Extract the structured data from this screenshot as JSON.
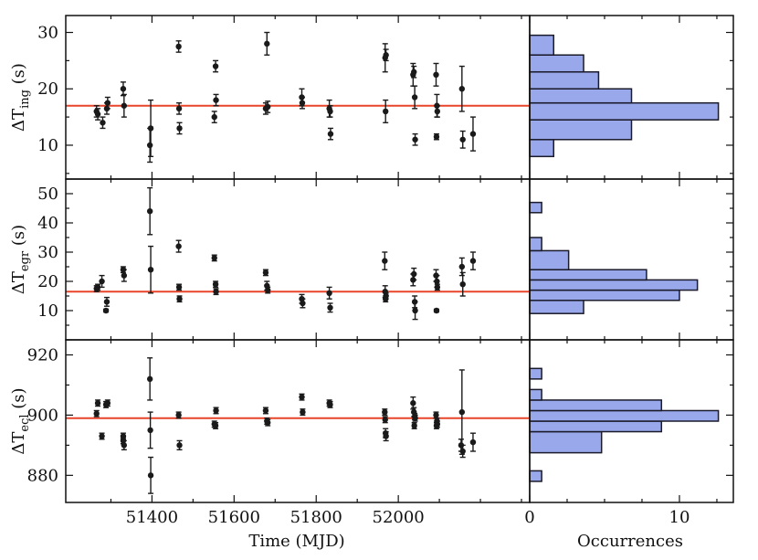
{
  "chart_data": [
    {
      "type": "scatter",
      "panel": "ingress",
      "ylabel": "ΔT",
      "ylabel_sub": "ing",
      "ylabel_unit": "(s)",
      "xlabel": "Time (MJD)",
      "xlim": [
        51190,
        52320
      ],
      "ylim": [
        4,
        33
      ],
      "yticks": [
        10,
        20,
        30
      ],
      "reference_line": 17,
      "points": [
        {
          "x": 51265,
          "y": 16,
          "err": 1
        },
        {
          "x": 51268,
          "y": 15.5,
          "err": 1
        },
        {
          "x": 51280,
          "y": 14,
          "err": 1
        },
        {
          "x": 51290,
          "y": 16.5,
          "err": 1
        },
        {
          "x": 51292,
          "y": 17.5,
          "err": 1
        },
        {
          "x": 51330,
          "y": 20,
          "err": 1.2
        },
        {
          "x": 51332,
          "y": 17,
          "err": 2
        },
        {
          "x": 51395,
          "y": 10,
          "err": 3
        },
        {
          "x": 51397,
          "y": 13,
          "err": 5
        },
        {
          "x": 51465,
          "y": 27.5,
          "err": 1
        },
        {
          "x": 51466,
          "y": 16.5,
          "err": 1
        },
        {
          "x": 51467,
          "y": 13,
          "err": 1
        },
        {
          "x": 51555,
          "y": 24,
          "err": 1
        },
        {
          "x": 51556,
          "y": 18,
          "err": 1
        },
        {
          "x": 51552,
          "y": 15,
          "err": 1
        },
        {
          "x": 51680,
          "y": 28,
          "err": 2
        },
        {
          "x": 51677,
          "y": 16.5,
          "err": 1
        },
        {
          "x": 51682,
          "y": 16.8,
          "err": 1
        },
        {
          "x": 51765,
          "y": 18.5,
          "err": 1.5
        },
        {
          "x": 51766,
          "y": 17.5,
          "err": 1
        },
        {
          "x": 51832,
          "y": 16.5,
          "err": 1.5
        },
        {
          "x": 51834,
          "y": 16,
          "err": 1
        },
        {
          "x": 51835,
          "y": 12,
          "err": 1
        },
        {
          "x": 51968,
          "y": 25.5,
          "err": 2.5
        },
        {
          "x": 51970,
          "y": 26,
          "err": 1
        },
        {
          "x": 51969,
          "y": 16,
          "err": 2
        },
        {
          "x": 52036,
          "y": 22.5,
          "err": 2
        },
        {
          "x": 52038,
          "y": 23,
          "err": 1
        },
        {
          "x": 52040,
          "y": 18.5,
          "err": 2
        },
        {
          "x": 52041,
          "y": 11,
          "err": 1
        },
        {
          "x": 52092,
          "y": 22.5,
          "err": 2
        },
        {
          "x": 52094,
          "y": 17,
          "err": 2
        },
        {
          "x": 52095,
          "y": 16,
          "err": 1
        },
        {
          "x": 52093,
          "y": 11.5,
          "err": 0.5
        },
        {
          "x": 52155,
          "y": 20,
          "err": 4
        },
        {
          "x": 52157,
          "y": 11,
          "err": 1.5
        },
        {
          "x": 52182,
          "y": 12,
          "err": 3
        }
      ],
      "histogram": [
        {
          "y0": 8,
          "y1": 11,
          "count": 1.6
        },
        {
          "y0": 11,
          "y1": 14.5,
          "count": 6.8
        },
        {
          "y0": 14.5,
          "y1": 17.5,
          "count": 12.6
        },
        {
          "y0": 17.5,
          "y1": 20,
          "count": 6.8
        },
        {
          "y0": 20,
          "y1": 23,
          "count": 4.6
        },
        {
          "y0": 23,
          "y1": 26,
          "count": 3.6
        },
        {
          "y0": 26,
          "y1": 29.5,
          "count": 1.6
        }
      ]
    },
    {
      "type": "scatter",
      "panel": "egress",
      "ylabel": "ΔT",
      "ylabel_sub": "egr",
      "ylabel_unit": "(s)",
      "xlim": [
        51190,
        52320
      ],
      "ylim": [
        0,
        55
      ],
      "yticks": [
        10,
        20,
        30,
        40,
        50
      ],
      "reference_line": 16.5,
      "points": [
        {
          "x": 51265,
          "y": 17.5,
          "err": 1
        },
        {
          "x": 51268,
          "y": 18,
          "err": 1
        },
        {
          "x": 51278,
          "y": 20,
          "err": 2
        },
        {
          "x": 51290,
          "y": 13,
          "err": 1.5
        },
        {
          "x": 51288,
          "y": 10,
          "err": 0.5
        },
        {
          "x": 51330,
          "y": 24,
          "err": 1
        },
        {
          "x": 51332,
          "y": 22,
          "err": 2
        },
        {
          "x": 51395,
          "y": 44,
          "err": 8
        },
        {
          "x": 51397,
          "y": 24,
          "err": 8
        },
        {
          "x": 51465,
          "y": 32,
          "err": 2
        },
        {
          "x": 51466,
          "y": 18,
          "err": 1
        },
        {
          "x": 51467,
          "y": 14,
          "err": 1
        },
        {
          "x": 51552,
          "y": 28,
          "err": 1
        },
        {
          "x": 51555,
          "y": 19,
          "err": 1
        },
        {
          "x": 51556,
          "y": 16.5,
          "err": 1
        },
        {
          "x": 51677,
          "y": 23,
          "err": 1
        },
        {
          "x": 51680,
          "y": 18.5,
          "err": 1.5
        },
        {
          "x": 51682,
          "y": 17,
          "err": 1
        },
        {
          "x": 51765,
          "y": 14,
          "err": 1.5
        },
        {
          "x": 51767,
          "y": 12.5,
          "err": 1.5
        },
        {
          "x": 51832,
          "y": 16,
          "err": 2
        },
        {
          "x": 51834,
          "y": 11,
          "err": 1.5
        },
        {
          "x": 51967,
          "y": 27,
          "err": 3
        },
        {
          "x": 51968,
          "y": 16.5,
          "err": 2
        },
        {
          "x": 51970,
          "y": 15,
          "err": 1
        },
        {
          "x": 51969,
          "y": 14,
          "err": 1
        },
        {
          "x": 52036,
          "y": 20.5,
          "err": 2
        },
        {
          "x": 52038,
          "y": 22.5,
          "err": 2
        },
        {
          "x": 52040,
          "y": 13,
          "err": 2
        },
        {
          "x": 52041,
          "y": 10,
          "err": 3
        },
        {
          "x": 52092,
          "y": 22,
          "err": 2
        },
        {
          "x": 52094,
          "y": 20,
          "err": 2
        },
        {
          "x": 52095,
          "y": 18,
          "err": 1
        },
        {
          "x": 52093,
          "y": 10,
          "err": 0.5
        },
        {
          "x": 52155,
          "y": 25,
          "err": 3
        },
        {
          "x": 52157,
          "y": 19,
          "err": 4
        },
        {
          "x": 52182,
          "y": 27,
          "err": 3
        }
      ],
      "histogram": [
        {
          "y0": 9,
          "y1": 13.5,
          "count": 3.6
        },
        {
          "y0": 13.5,
          "y1": 17,
          "count": 10
        },
        {
          "y0": 17,
          "y1": 20.5,
          "count": 11.2
        },
        {
          "y0": 20.5,
          "y1": 24,
          "count": 7.8
        },
        {
          "y0": 24,
          "y1": 30.5,
          "count": 2.6
        },
        {
          "y0": 30.5,
          "y1": 35,
          "count": 0.8
        },
        {
          "y0": 43.5,
          "y1": 47,
          "count": 0.8
        }
      ]
    },
    {
      "type": "scatter",
      "panel": "eclipse",
      "ylabel": "ΔT",
      "ylabel_sub": "ecl",
      "ylabel_unit": "(s)",
      "xlim": [
        51190,
        52320
      ],
      "ylim": [
        871,
        925
      ],
      "yticks": [
        880,
        900,
        920
      ],
      "reference_line": 899,
      "points": [
        {
          "x": 51265,
          "y": 900.5,
          "err": 1
        },
        {
          "x": 51268,
          "y": 904,
          "err": 1
        },
        {
          "x": 51278,
          "y": 893,
          "err": 1
        },
        {
          "x": 51288,
          "y": 903.5,
          "err": 1
        },
        {
          "x": 51292,
          "y": 904,
          "err": 1
        },
        {
          "x": 51330,
          "y": 893,
          "err": 1
        },
        {
          "x": 51332,
          "y": 890,
          "err": 1.5
        },
        {
          "x": 51330,
          "y": 891.5,
          "err": 1
        },
        {
          "x": 51395,
          "y": 912,
          "err": 7
        },
        {
          "x": 51396,
          "y": 895,
          "err": 6
        },
        {
          "x": 51397,
          "y": 880,
          "err": 6
        },
        {
          "x": 51465,
          "y": 900,
          "err": 1
        },
        {
          "x": 51467,
          "y": 890,
          "err": 1.5
        },
        {
          "x": 51552,
          "y": 897,
          "err": 1
        },
        {
          "x": 51555,
          "y": 896.5,
          "err": 1
        },
        {
          "x": 51556,
          "y": 901.5,
          "err": 1
        },
        {
          "x": 51677,
          "y": 901.5,
          "err": 1
        },
        {
          "x": 51680,
          "y": 898,
          "err": 1
        },
        {
          "x": 51682,
          "y": 897.5,
          "err": 1
        },
        {
          "x": 51765,
          "y": 906,
          "err": 1
        },
        {
          "x": 51767,
          "y": 901,
          "err": 1
        },
        {
          "x": 51832,
          "y": 904,
          "err": 1
        },
        {
          "x": 51834,
          "y": 903.5,
          "err": 1
        },
        {
          "x": 51967,
          "y": 901,
          "err": 1
        },
        {
          "x": 51968,
          "y": 898.5,
          "err": 1
        },
        {
          "x": 51969,
          "y": 894,
          "err": 1.5
        },
        {
          "x": 51970,
          "y": 893,
          "err": 1.5
        },
        {
          "x": 52036,
          "y": 904,
          "err": 2
        },
        {
          "x": 52038,
          "y": 901,
          "err": 1.5
        },
        {
          "x": 52040,
          "y": 899.5,
          "err": 1
        },
        {
          "x": 52041,
          "y": 899,
          "err": 1
        },
        {
          "x": 52039,
          "y": 896.5,
          "err": 1
        },
        {
          "x": 52092,
          "y": 900,
          "err": 1
        },
        {
          "x": 52094,
          "y": 898,
          "err": 1
        },
        {
          "x": 52095,
          "y": 897,
          "err": 1
        },
        {
          "x": 52093,
          "y": 896.5,
          "err": 1
        },
        {
          "x": 52155,
          "y": 901,
          "err": 14
        },
        {
          "x": 52153,
          "y": 890,
          "err": 2
        },
        {
          "x": 52157,
          "y": 888,
          "err": 2
        },
        {
          "x": 52182,
          "y": 891,
          "err": 3
        }
      ],
      "histogram": [
        {
          "y0": 878,
          "y1": 881.5,
          "count": 0.8
        },
        {
          "y0": 887.5,
          "y1": 894.5,
          "count": 4.8
        },
        {
          "y0": 894.5,
          "y1": 898,
          "count": 8.8
        },
        {
          "y0": 898,
          "y1": 901.5,
          "count": 12.6
        },
        {
          "y0": 901.5,
          "y1": 905,
          "count": 8.8
        },
        {
          "y0": 905,
          "y1": 908.5,
          "count": 0.8
        },
        {
          "y0": 912,
          "y1": 915.5,
          "count": 0.8
        }
      ]
    }
  ],
  "x_axis": {
    "label": "Time (MJD)",
    "ticks": [
      51400,
      51600,
      51800,
      52000
    ]
  },
  "hist_axis": {
    "label": "Occurrences",
    "xlim": [
      0,
      13.6
    ],
    "ticks": [
      0,
      10
    ]
  },
  "colors": {
    "reference_line": "#e8452a",
    "histogram_fill": "#98a8ea",
    "histogram_stroke": "#1a1a2a",
    "points": "#1a1a1a",
    "axes": "#111111"
  }
}
